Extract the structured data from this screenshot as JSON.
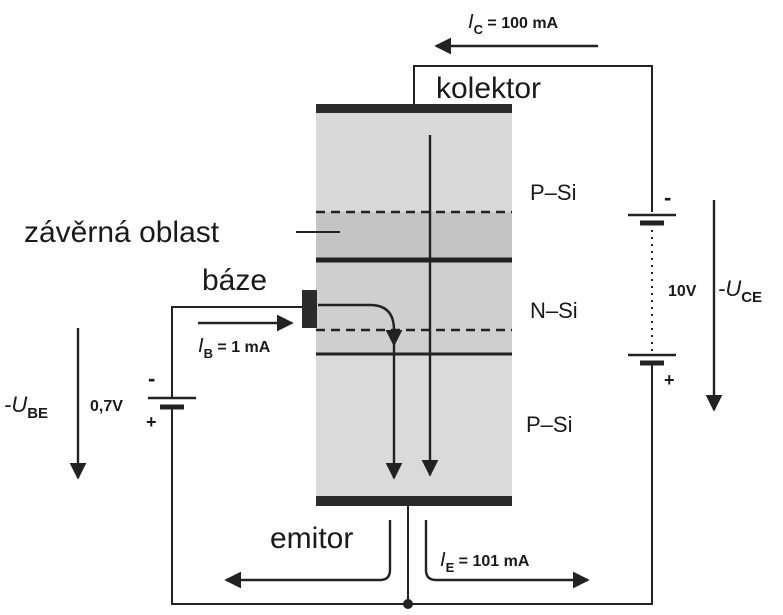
{
  "labels": {
    "kolektor": "kolektor",
    "baze": "báze",
    "emitor": "emitor",
    "zaverna_oblast": "závěrná oblast",
    "p_si_top": "P–Si",
    "n_si": "N–Si",
    "p_si_bottom": "P–Si"
  },
  "currents": {
    "ic_symbol": "I",
    "ic_sub": "C",
    "ic_value": " = 100 mA",
    "ib_symbol": "I",
    "ib_sub": "B",
    "ib_value": " = 1 mA",
    "ie_symbol": "I",
    "ie_sub": "E",
    "ie_value": " = 101 mA"
  },
  "voltages": {
    "vbe_prefix": "-U",
    "vbe_sub": "BE",
    "vbe_value": "0,7V",
    "vce_value": "10V",
    "vce_prefix": "-U",
    "vce_sub": "CE"
  },
  "polarity": {
    "minus": "-",
    "plus": "+"
  },
  "colors": {
    "p_region": "#d9d9d9",
    "n_region": "#cfcfcf",
    "depletion": "#c4c4c4",
    "contact": "#2b2b2b",
    "line": "#222222"
  }
}
